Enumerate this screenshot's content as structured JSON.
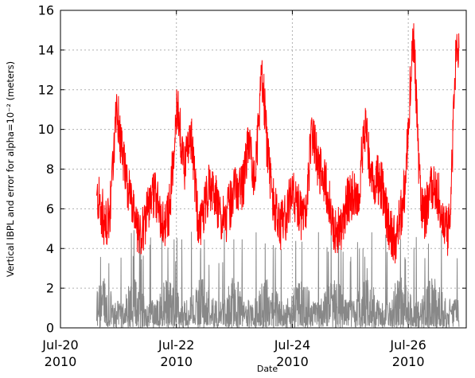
{
  "chart_data": {
    "type": "line",
    "xlabel": "Date",
    "ylabel": "Vertical IBPL and error for alpha=10⁻² (meters)",
    "ylim": [
      0,
      16
    ],
    "xlim": [
      "2010-07-20",
      "2010-07-27"
    ],
    "grid": true,
    "x_ticks": [
      {
        "date": "2010-07-20",
        "line1": "Jul-20",
        "line2": "2010"
      },
      {
        "date": "2010-07-22",
        "line1": "Jul-22",
        "line2": "2010"
      },
      {
        "date": "2010-07-24",
        "line1": "Jul-24",
        "line2": "2010"
      },
      {
        "date": "2010-07-26",
        "line1": "Jul-26",
        "line2": "2010"
      }
    ],
    "y_ticks": [
      "0",
      "2",
      "4",
      "6",
      "8",
      "10",
      "12",
      "14",
      "16"
    ],
    "sampling": "1 sample every 2 minutes (approx.), 2010-07-20T15:00 to 2010-07-26T21:00",
    "series": [
      {
        "color": "#ff0000",
        "description": "Vertical IBPL (upper, noisy series)",
        "x_start": "2010-07-20T15:00",
        "x_end": "2010-07-26T21:00",
        "mean_approx": 6.0,
        "range_approx": [
          2.5,
          15.5
        ],
        "peaks": [
          {
            "date": "2010-07-20T23:00",
            "value": 11.6
          },
          {
            "date": "2010-07-22T00:00",
            "value": 10.9
          },
          {
            "date": "2010-07-22T06:00",
            "value": 11.7
          },
          {
            "date": "2010-07-23T06:00",
            "value": 11.6
          },
          {
            "date": "2010-07-23T11:00",
            "value": 12.8
          },
          {
            "date": "2010-07-24T08:00",
            "value": 11.3
          },
          {
            "date": "2010-07-25T06:00",
            "value": 12.2
          },
          {
            "date": "2010-07-26T02:00",
            "value": 15.0
          },
          {
            "date": "2010-07-26T20:00",
            "value": 15.5
          }
        ]
      },
      {
        "color": "#888888",
        "description": "error (lower, spiky series)",
        "x_start": "2010-07-20T15:00",
        "x_end": "2010-07-26T21:00",
        "mean_approx": 1.5,
        "range_approx": [
          0,
          5.0
        ]
      }
    ]
  }
}
